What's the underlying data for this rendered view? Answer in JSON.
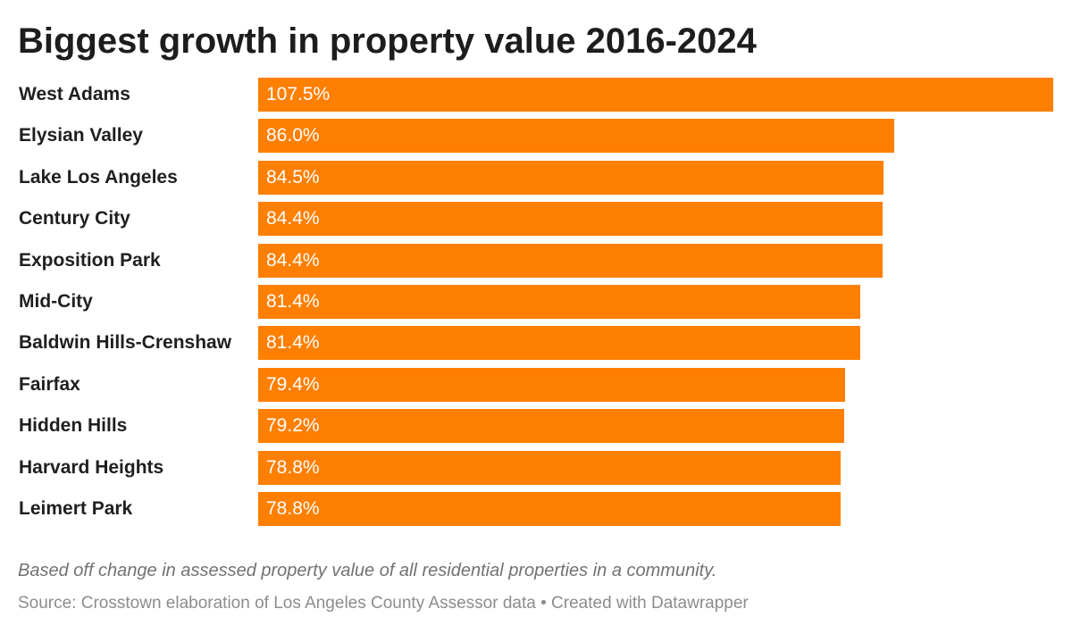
{
  "chart_data": {
    "type": "bar",
    "orientation": "horizontal",
    "title": "Biggest growth in property value 2016-2024",
    "categories": [
      "West Adams",
      "Elysian Valley",
      "Lake Los Angeles",
      "Century City",
      "Exposition Park",
      "Mid-City",
      "Baldwin Hills-Crenshaw",
      "Fairfax",
      "Hidden Hills",
      "Harvard Heights",
      "Leimert Park"
    ],
    "values": [
      107.5,
      86.0,
      84.5,
      84.4,
      84.4,
      81.4,
      81.4,
      79.4,
      79.2,
      78.8,
      78.8
    ],
    "value_labels": [
      "107.5%",
      "86.0%",
      "84.5%",
      "84.4%",
      "84.4%",
      "81.4%",
      "81.4%",
      "79.4%",
      "79.2%",
      "78.8%",
      "78.8%"
    ],
    "xlim": [
      0,
      107.5
    ],
    "xlabel": "",
    "ylabel": "",
    "grid": false,
    "legend": "none",
    "bar_color": "#ff7f00",
    "note": "Based off change in assessed property value of all residential properties in a community.",
    "source": "Source: Crosstown elaboration of Los Angeles County Assessor data • Created with Datawrapper"
  }
}
